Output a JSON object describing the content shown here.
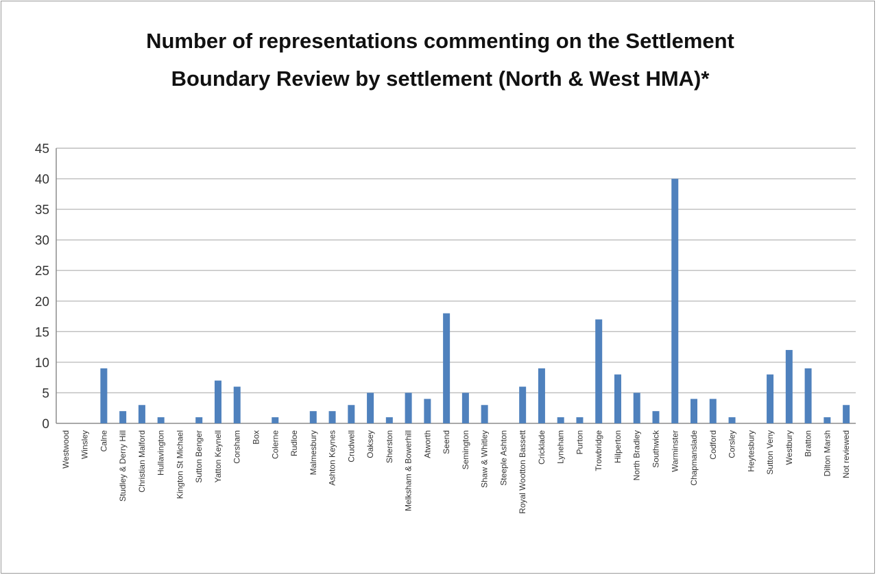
{
  "chart_data": {
    "type": "bar",
    "title": "Number of representations commenting on the Settlement Boundary Review by settlement (North & West HMA)*",
    "xlabel": "",
    "ylabel": "",
    "ylim": [
      0,
      45
    ],
    "yticks": [
      0,
      5,
      10,
      15,
      20,
      25,
      30,
      35,
      40,
      45
    ],
    "grid": true,
    "legend": "none",
    "bar_color": "#4f81bd",
    "categories": [
      "Westwood",
      "Winsley",
      "Calne",
      "Studley & Derry Hill",
      "Christian Malford",
      "Hullavington",
      "Kington St Michael",
      "Sutton Benger",
      "Yatton Keynell",
      "Corsham",
      "Box",
      "Colerne",
      "Rudloe",
      "Malmesbury",
      "Ashton Keynes",
      "Crudwell",
      "Oaksey",
      "Sherston",
      "Melksham & Bowerhill",
      "Atworth",
      "Seend",
      "Semington",
      "Shaw & Whitley",
      "Steeple Ashton",
      "Royal Wootton Bassett",
      "Cricklade",
      "Lyneham",
      "Purton",
      "Trowbridge",
      "Hilperton",
      "North Bradley",
      "Southwick",
      "Warminster",
      "Chapmanslade",
      "Codford",
      "Corsley",
      "Heytesbury",
      "Sutton Veny",
      "Westbury",
      "Bratton",
      "Dilton Marsh",
      "Not reviewed"
    ],
    "values": [
      0,
      0,
      9,
      2,
      3,
      1,
      0,
      1,
      7,
      6,
      0,
      1,
      0,
      2,
      2,
      3,
      5,
      1,
      5,
      4,
      18,
      5,
      3,
      0,
      6,
      9,
      1,
      1,
      17,
      8,
      5,
      2,
      40,
      4,
      4,
      1,
      0,
      8,
      12,
      9,
      1,
      3
    ]
  }
}
